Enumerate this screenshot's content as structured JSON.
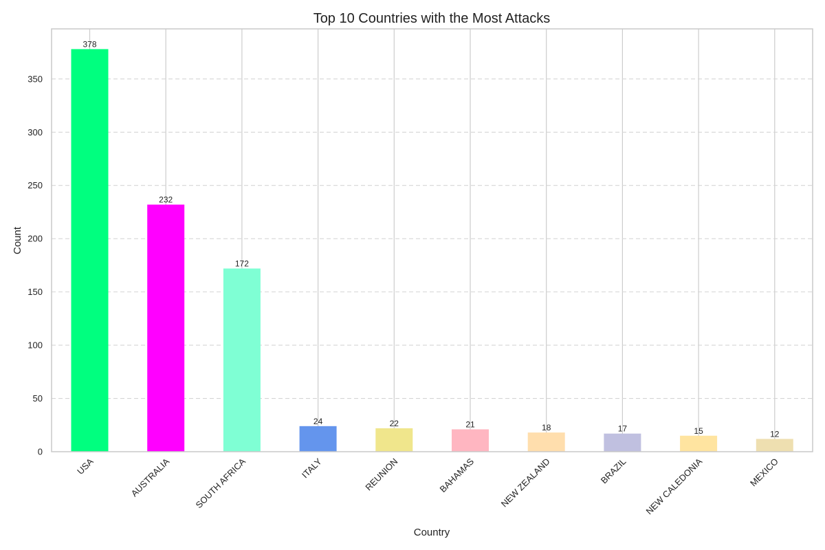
{
  "chart_data": {
    "type": "bar",
    "title": "Top 10 Countries with the Most Attacks",
    "xlabel": "Country",
    "ylabel": "Count",
    "categories": [
      "USA",
      "AUSTRALIA",
      "SOUTH AFRICA",
      "ITALY",
      "REUNION",
      "BAHAMAS",
      "NEW ZEALAND",
      "BRAZIL",
      "NEW CALEDONIA",
      "MEXICO"
    ],
    "values": [
      378,
      232,
      172,
      24,
      22,
      21,
      18,
      17,
      15,
      12
    ],
    "colors": [
      "#00ff7f",
      "#ff00ff",
      "#7fffd4",
      "#6495ed",
      "#f0e68c",
      "#ffb6c1",
      "#ffdead",
      "#c0c0e0",
      "#ffe4a0",
      "#eedfb0"
    ],
    "ylim": [
      0,
      397
    ],
    "yticks": [
      0,
      50,
      100,
      150,
      200,
      250,
      300,
      350
    ],
    "grid": true,
    "value_labels": true
  }
}
